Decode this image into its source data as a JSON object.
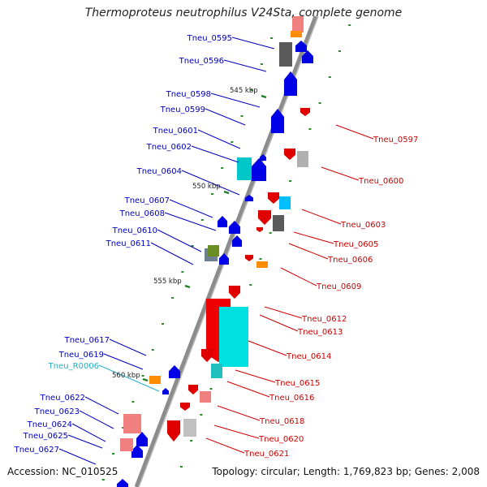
{
  "title": "Thermoproteus neutrophilus V24Sta, complete genome",
  "accession": "Accession: NC_010525",
  "topology": "Topology: circular; Length: 1,769,823 bp; Genes: 2,008",
  "colors": {
    "backbone": "#8c8c8c",
    "forward_label": "#0000c0",
    "reverse_label": "#d00000",
    "rna_label": "#20b0c8",
    "kbp_mark": "#208020"
  },
  "kbp_marks": [
    "545 kbp",
    "550 kbp",
    "555 kbp",
    "560 kbp"
  ],
  "forward_genes": [
    "Tneu_0595",
    "Tneu_0596",
    "Tneu_0598",
    "Tneu_0599",
    "Tneu_0601",
    "Tneu_0602",
    "Tneu_0604",
    "Tneu_0607",
    "Tneu_0608",
    "Tneu_0610",
    "Tneu_0611",
    "Tneu_0617",
    "Tneu_0619",
    "Tneu_0622",
    "Tneu_0623",
    "Tneu_0624",
    "Tneu_0625",
    "Tneu_0627"
  ],
  "rna_genes": [
    "Tneu_R0006"
  ],
  "reverse_genes": [
    "Tneu_0597",
    "Tneu_0600",
    "Tneu_0603",
    "Tneu_0605",
    "Tneu_0606",
    "Tneu_0609",
    "Tneu_0612",
    "Tneu_0613",
    "Tneu_0614",
    "Tneu_0615",
    "Tneu_0616",
    "Tneu_0618",
    "Tneu_0620",
    "Tneu_0621"
  ]
}
